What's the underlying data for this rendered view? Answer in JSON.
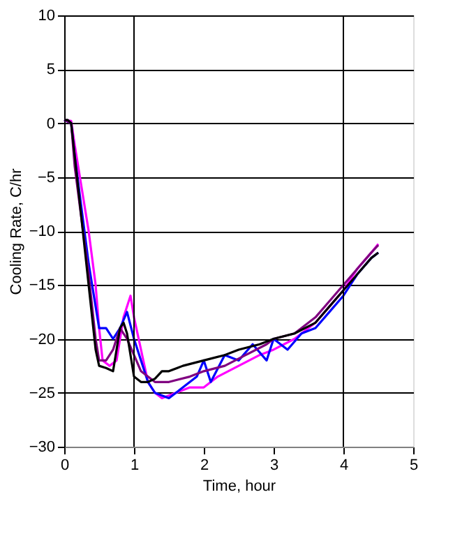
{
  "chart_data": {
    "type": "line",
    "xlabel": "Time, hour",
    "ylabel": "Cooling Rate, C/hr",
    "xlim": [
      0,
      5
    ],
    "xticks": [
      0,
      1,
      2,
      3,
      4,
      5
    ],
    "ylim": [
      -30,
      10
    ],
    "yticks": [
      -30,
      -25,
      -20,
      -15,
      -10,
      -5,
      0,
      5,
      10
    ],
    "grid": "y",
    "line_style": "solid",
    "marker": "none",
    "legend": false,
    "ref_lines": [
      {
        "axis": "x",
        "value": 1,
        "color": "#000000"
      },
      {
        "axis": "x",
        "value": 4,
        "color": "#000000"
      }
    ],
    "series": [
      {
        "color": "#ff00ff",
        "x": [
          0,
          0.1,
          0.15,
          0.25,
          0.35,
          0.45,
          0.5,
          0.55,
          0.65,
          0.75,
          0.85,
          0.95,
          1.0,
          1.1,
          1.2,
          1.3,
          1.4,
          1.6,
          1.8,
          2.0,
          2.2,
          2.5,
          2.8,
          3.0,
          3.3,
          3.6,
          3.8,
          4.0,
          4.2,
          4.4,
          4.5
        ],
        "values": [
          0.3,
          0.2,
          -2,
          -6,
          -10,
          -15,
          -19,
          -22,
          -22.5,
          -22,
          -18,
          -16,
          -18,
          -21,
          -24,
          -25,
          -25.5,
          -25,
          -24.5,
          -24.5,
          -23.5,
          -22.5,
          -21.5,
          -21,
          -20,
          -18.5,
          -17,
          -15.5,
          -13.5,
          -12,
          -11.2
        ]
      },
      {
        "color": "#0000ff",
        "x": [
          0,
          0.1,
          0.15,
          0.25,
          0.35,
          0.45,
          0.5,
          0.6,
          0.7,
          0.8,
          0.9,
          1.0,
          1.1,
          1.2,
          1.3,
          1.5,
          1.7,
          1.9,
          2.0,
          2.1,
          2.3,
          2.5,
          2.7,
          2.9,
          3.0,
          3.2,
          3.4,
          3.6,
          3.8,
          4.0,
          4.2,
          4.4,
          4.5
        ],
        "values": [
          0.3,
          0,
          -3,
          -8,
          -13,
          -17,
          -19,
          -19,
          -20,
          -19,
          -17.5,
          -20,
          -22,
          -24,
          -25,
          -25.5,
          -24.5,
          -23.5,
          -22,
          -24,
          -21.5,
          -22,
          -20.5,
          -22,
          -20,
          -21,
          -19.5,
          -19,
          -17.5,
          -16,
          -14,
          -12.5,
          -12
        ]
      },
      {
        "color": "#800080",
        "x": [
          0,
          0.1,
          0.15,
          0.25,
          0.35,
          0.45,
          0.5,
          0.6,
          0.7,
          0.8,
          0.9,
          1.0,
          1.1,
          1.3,
          1.5,
          1.8,
          2.0,
          2.3,
          2.6,
          2.9,
          3.0,
          3.3,
          3.6,
          3.8,
          4.0,
          4.2,
          4.4,
          4.5
        ],
        "values": [
          0.3,
          0,
          -4,
          -9,
          -14,
          -20,
          -22,
          -22,
          -21,
          -19,
          -20,
          -21.5,
          -23,
          -24,
          -24,
          -23.5,
          -23,
          -22.5,
          -21.5,
          -20.5,
          -20,
          -19.5,
          -18,
          -16.5,
          -15,
          -13.5,
          -12,
          -11.3
        ]
      },
      {
        "color": "#000000",
        "x": [
          0,
          0.05,
          0.1,
          0.15,
          0.2,
          0.25,
          0.3,
          0.35,
          0.4,
          0.45,
          0.5,
          0.6,
          0.7,
          0.75,
          0.8,
          0.85,
          0.9,
          0.95,
          1.0,
          1.1,
          1.2,
          1.3,
          1.4,
          1.5,
          1.7,
          2.0,
          2.3,
          2.5,
          2.8,
          3.0,
          3.3,
          3.6,
          3.8,
          4.0,
          4.2,
          4.4,
          4.5
        ],
        "values": [
          0.3,
          0.3,
          0,
          -3,
          -6,
          -9,
          -12,
          -15,
          -18,
          -21,
          -22.5,
          -22.7,
          -23,
          -21,
          -19,
          -18.5,
          -19.5,
          -21.5,
          -23.5,
          -24,
          -24,
          -23.7,
          -23,
          -23,
          -22.5,
          -22,
          -21.5,
          -21,
          -20.5,
          -20,
          -19.5,
          -18.5,
          -17,
          -15.5,
          -14,
          -12.5,
          -12
        ]
      }
    ]
  }
}
